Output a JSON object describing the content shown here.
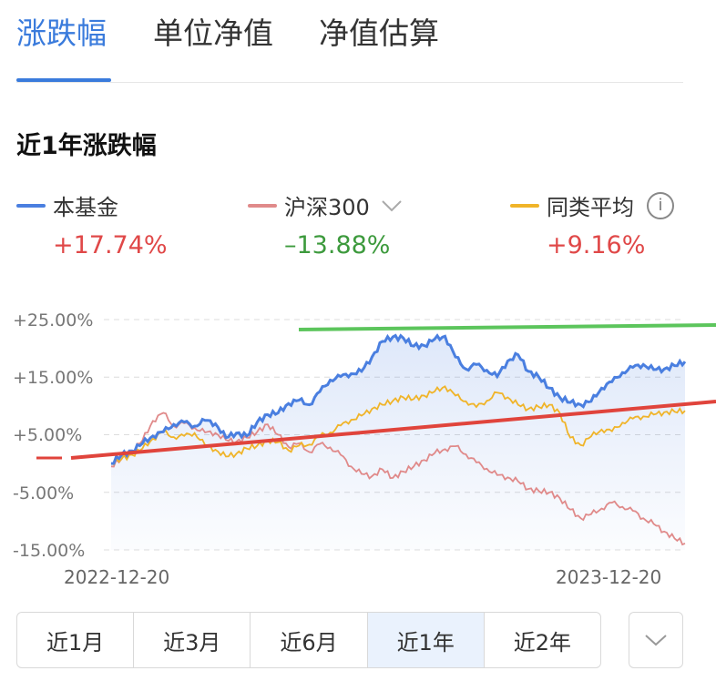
{
  "tabs": [
    {
      "label": "涨跌幅",
      "active": true
    },
    {
      "label": "单位净值",
      "active": false
    },
    {
      "label": "净值估算",
      "active": false
    }
  ],
  "section_title": "近1年涨跌幅",
  "legend": [
    {
      "label": "本基金",
      "value": "+17.74%",
      "color": "#4a7fe0",
      "value_color": "#e04848"
    },
    {
      "label": "沪深300",
      "value": "–13.88%",
      "color": "#e08a8a",
      "value_color": "#3d9a3d"
    },
    {
      "label": "同类平均",
      "value": "+9.16%",
      "color": "#f0b429",
      "value_color": "#e04848"
    }
  ],
  "colors": {
    "accent": "#3a7bdc",
    "annotation_green": "#5cc55c",
    "annotation_red": "#e0443c"
  },
  "chart_data": {
    "type": "line",
    "x_start_label": "2022-12-20",
    "x_end_label": "2023-12-20",
    "y_ticks": [
      "+25.00%",
      "+15.00%",
      "+5.00%",
      "-5.00%",
      "-15.00%"
    ],
    "ylim": [
      -15,
      25
    ],
    "grid": true,
    "series": [
      {
        "name": "本基金",
        "values": [
          0,
          1.5,
          2.2,
          3.5,
          4.8,
          5.5,
          6.8,
          7.2,
          6.5,
          7.5,
          6.9,
          4.5,
          5.3,
          4.8,
          7.2,
          8.5,
          8.8,
          10.4,
          11.0,
          10.2,
          12.5,
          14.5,
          15.1,
          15.6,
          16.0,
          18.5,
          21.2,
          22.0,
          21.8,
          20.4,
          20.5,
          21.6,
          22.1,
          18.5,
          16.4,
          17.2,
          16.2,
          15.1,
          17.8,
          18.9,
          16.0,
          15.0,
          13.1,
          11.5,
          10.6,
          10.2,
          10.8,
          13.1,
          14.2,
          15.8,
          16.7,
          17.2,
          16.3,
          16.4,
          17.0,
          17.7
        ]
      },
      {
        "name": "沪深300",
        "values": [
          -0.5,
          0.8,
          2.1,
          4.0,
          7.4,
          8.8,
          6.5,
          7.0,
          6.2,
          5.4,
          5.3,
          4.1,
          3.8,
          4.5,
          5.5,
          6.8,
          5.0,
          2.9,
          3.5,
          2.0,
          3.4,
          2.8,
          1.5,
          -0.5,
          -1.8,
          -2.2,
          -1.0,
          -2.5,
          -1.4,
          -0.5,
          0.6,
          1.8,
          2.5,
          3.0,
          1.6,
          0.2,
          -0.9,
          -2.0,
          -2.4,
          -3.1,
          -4.4,
          -4.8,
          -5.0,
          -6.0,
          -8.0,
          -9.5,
          -8.8,
          -7.8,
          -6.8,
          -7.5,
          -8.2,
          -9.5,
          -10.5,
          -11.8,
          -13.0,
          -13.88
        ]
      },
      {
        "name": "同类平均",
        "values": [
          0,
          0.8,
          1.5,
          2.6,
          4.3,
          5.5,
          4.6,
          4.8,
          5.3,
          3.2,
          2.4,
          1.2,
          1.7,
          2.6,
          3.1,
          4.0,
          3.7,
          2.3,
          3.1,
          3.3,
          4.8,
          5.4,
          6.6,
          7.6,
          8.3,
          9.5,
          10.2,
          10.9,
          11.5,
          11.2,
          11.8,
          12.5,
          13.4,
          11.8,
          10.8,
          9.8,
          10.9,
          12.3,
          11.5,
          10.2,
          9.5,
          9.8,
          10.2,
          8.8,
          4.5,
          3.2,
          4.7,
          5.9,
          5.6,
          7.1,
          7.8,
          8.2,
          8.5,
          8.9,
          9.0,
          9.16
        ]
      }
    ]
  },
  "range_buttons": [
    {
      "label": "近1月",
      "selected": false
    },
    {
      "label": "近3月",
      "selected": false
    },
    {
      "label": "近6月",
      "selected": false
    },
    {
      "label": "近1年",
      "selected": true
    },
    {
      "label": "近2年",
      "selected": false
    }
  ],
  "more_button_icon": "chevron-down-icon"
}
